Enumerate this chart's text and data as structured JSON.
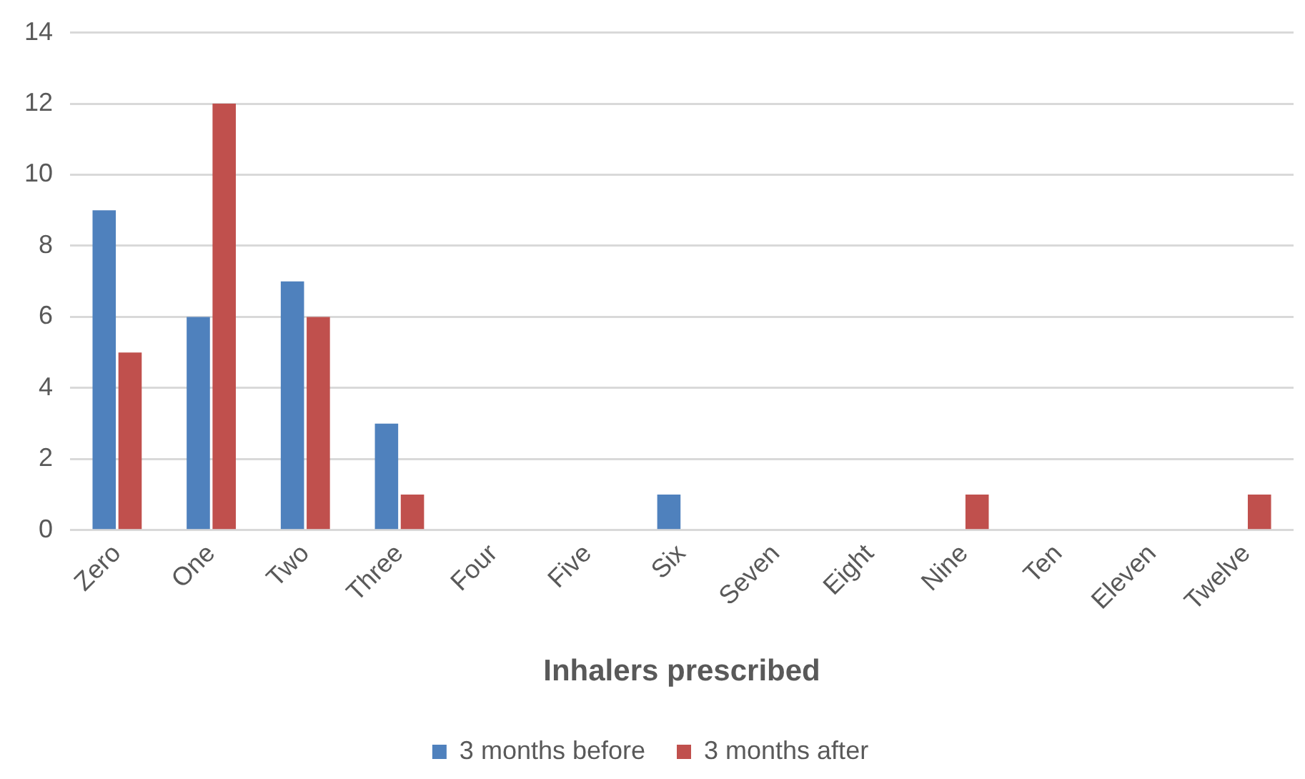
{
  "chart_data": {
    "type": "bar",
    "xlabel": "Inhalers prescribed",
    "categories": [
      "Zero",
      "One",
      "Two",
      "Three",
      "Four",
      "Five",
      "Six",
      "Seven",
      "Eight",
      "Nine",
      "Ten",
      "Eleven",
      "Twelve"
    ],
    "series": [
      {
        "name": "3 months before",
        "color": "#4f81bd",
        "values": [
          9,
          6,
          7,
          3,
          0,
          0,
          1,
          0,
          0,
          0,
          0,
          0,
          0
        ]
      },
      {
        "name": "3 months after",
        "color": "#c0504d",
        "values": [
          5,
          12,
          6,
          1,
          0,
          0,
          0,
          0,
          0,
          1,
          0,
          0,
          1
        ]
      }
    ],
    "ylim": [
      0,
      14
    ],
    "yticks": [
      0,
      2,
      4,
      6,
      8,
      10,
      12,
      14
    ],
    "grid": "y",
    "legend": "bottom"
  }
}
